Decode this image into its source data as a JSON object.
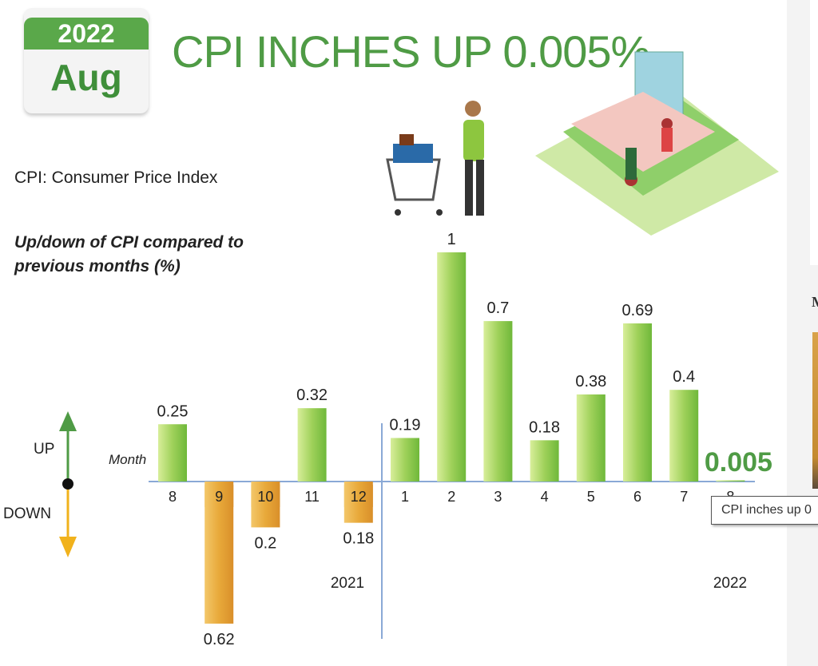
{
  "calendar": {
    "year": "2022",
    "month": "Aug"
  },
  "title": "CPI INCHES UP 0.005%",
  "subtitle": "CPI: Consumer Price Index",
  "description": "Up/down of CPI compared to previous months (%)",
  "legend": {
    "up": "UP",
    "down": "DOWN",
    "month_label": "Month"
  },
  "tooltip": "CPI inches up 0",
  "side_letter": "M",
  "colors": {
    "up": "#9ccf5c",
    "down": "#e8a93a",
    "title": "#4f9b45",
    "axis": "#8aa9d6"
  },
  "chart_data": {
    "type": "bar",
    "categories": [
      "8",
      "9",
      "10",
      "11",
      "12",
      "1",
      "2",
      "3",
      "4",
      "5",
      "6",
      "7",
      "8"
    ],
    "years": [
      "2021",
      "2022"
    ],
    "values": [
      0.25,
      -0.62,
      -0.2,
      0.32,
      -0.18,
      0.19,
      1,
      0.7,
      0.18,
      0.38,
      0.69,
      0.4,
      0.005
    ],
    "data_labels": [
      "0.25",
      "0.62",
      "0.2",
      "0.32",
      "0.18",
      "0.19",
      "1",
      "0.7",
      "0.18",
      "0.38",
      "0.69",
      "0.4",
      "0.005"
    ],
    "ylabel": "",
    "grid": false
  }
}
